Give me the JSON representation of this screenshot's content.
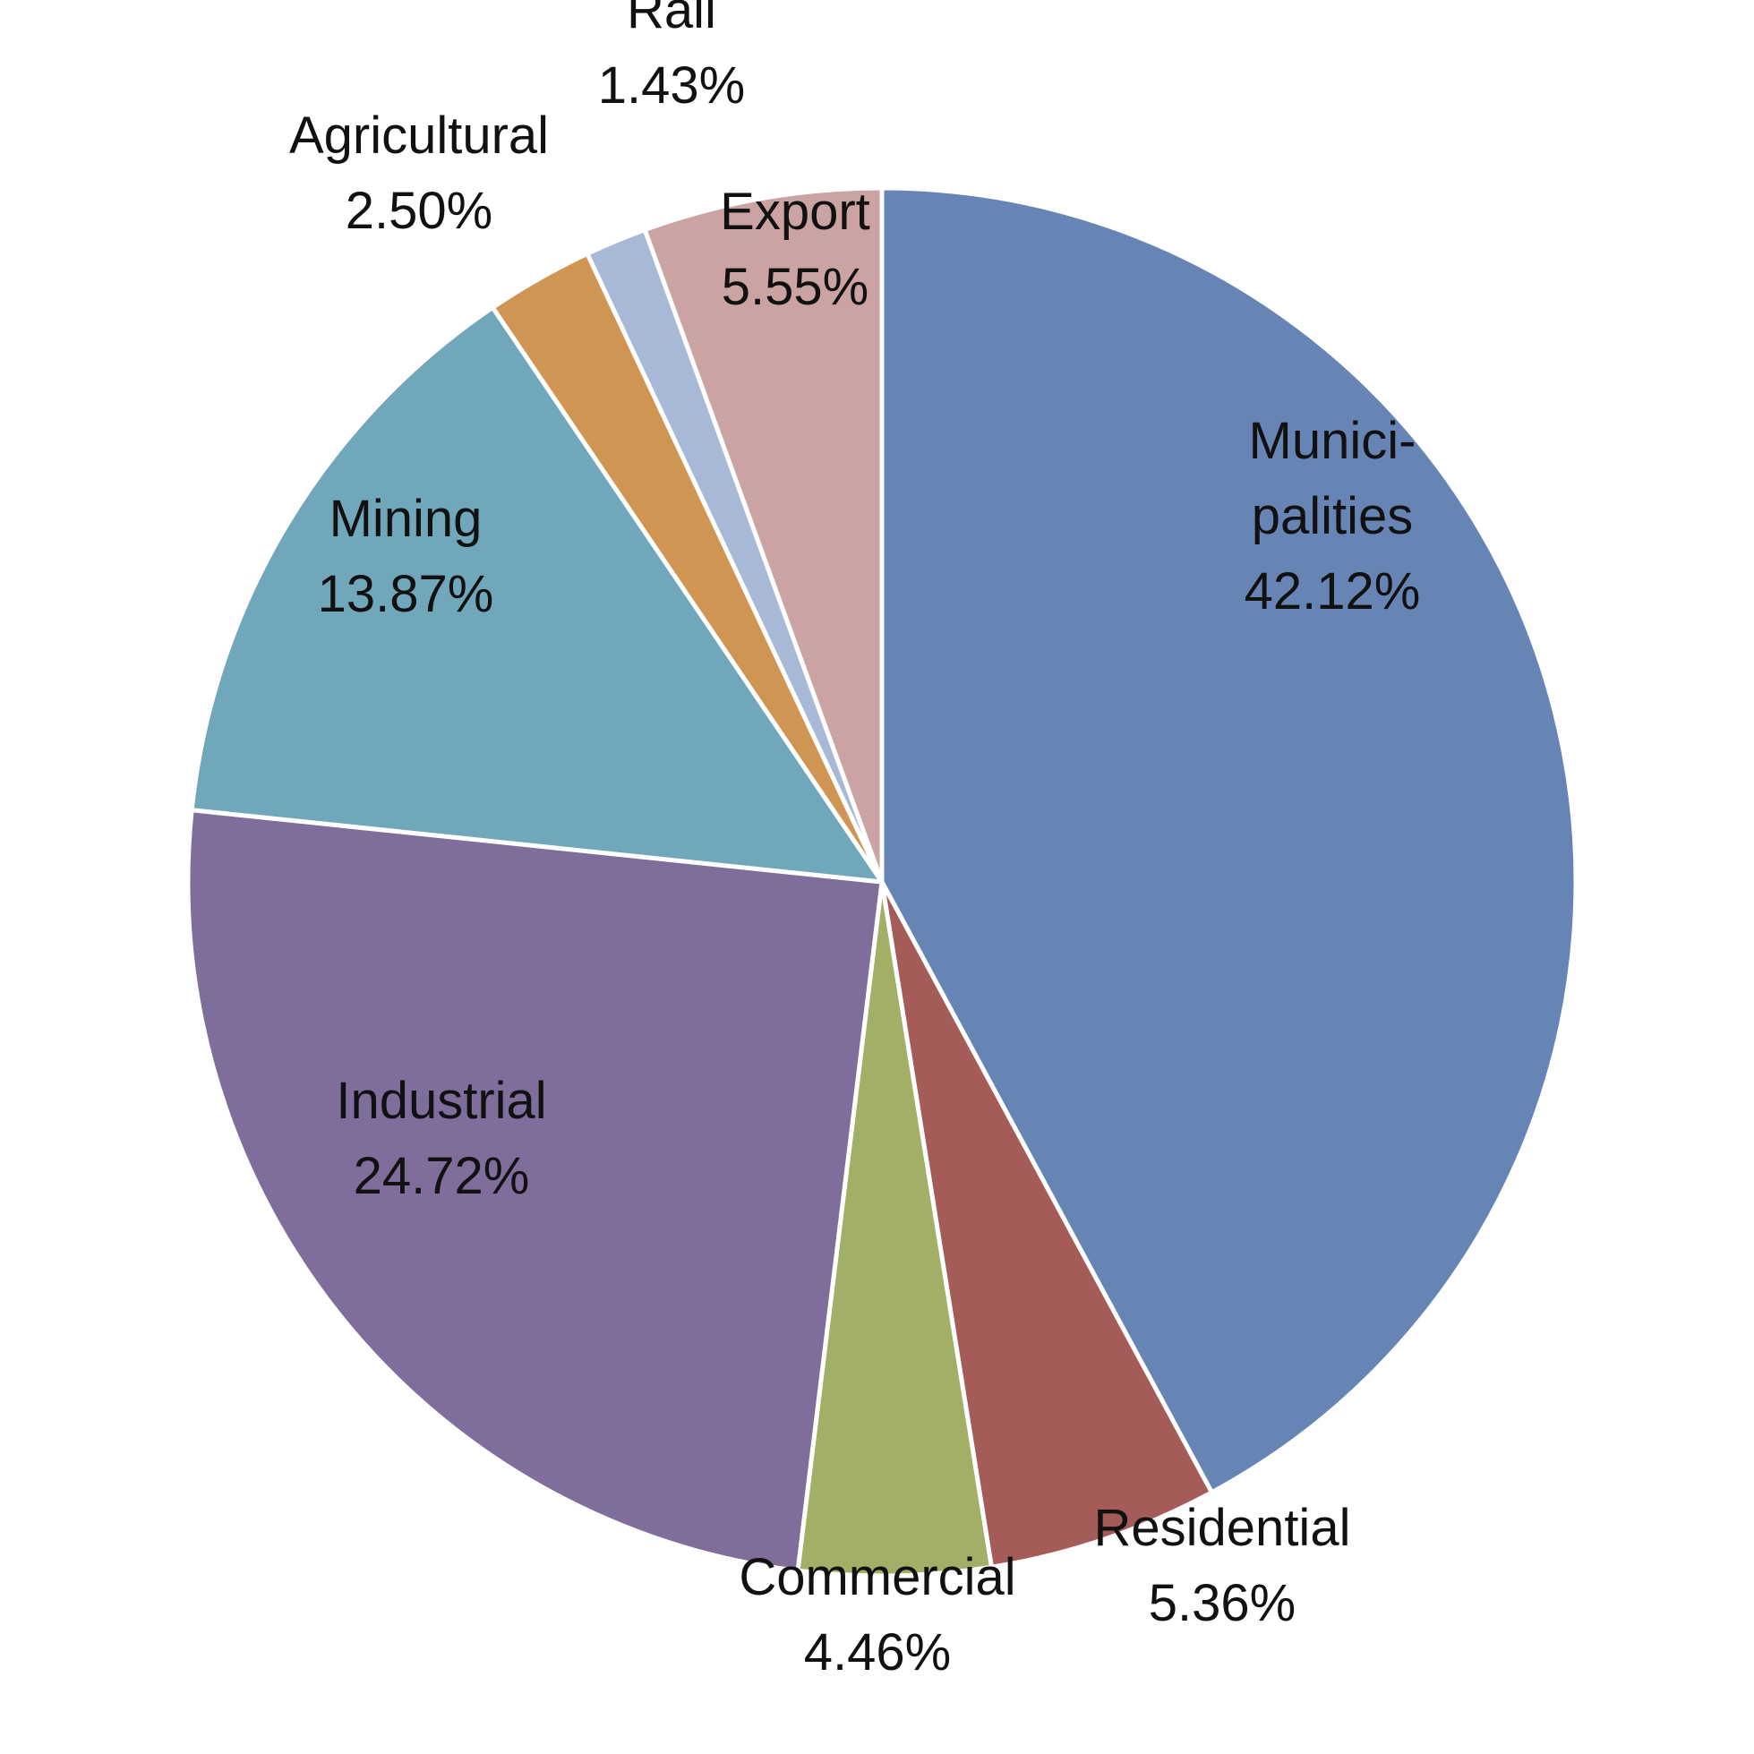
{
  "chart_data": {
    "type": "pie",
    "title": "",
    "start": "12 o'clock, clockwise",
    "slices": [
      {
        "name": "Munici-\npalities",
        "value": 42.12,
        "label": "42.12%",
        "color": "#6785B4"
      },
      {
        "name": "Residential",
        "value": 5.36,
        "label": "5.36%",
        "color": "#A55B57"
      },
      {
        "name": "Commercial",
        "value": 4.46,
        "label": "4.46%",
        "color": "#A1B066"
      },
      {
        "name": "Industrial",
        "value": 24.72,
        "label": "24.72%",
        "color": "#7F6D9C"
      },
      {
        "name": "Mining",
        "value": 13.87,
        "label": "13.87%",
        "color": "#71A7BA"
      },
      {
        "name": "Agricultural",
        "value": 2.5,
        "label": "2.50%",
        "color": "#D09552"
      },
      {
        "name": "Rail",
        "value": 1.43,
        "label": "1.43%",
        "color": "#A8B8D7"
      },
      {
        "name": "Export",
        "value": 5.55,
        "label": "5.55%",
        "color": "#CBA3A2"
      }
    ]
  }
}
